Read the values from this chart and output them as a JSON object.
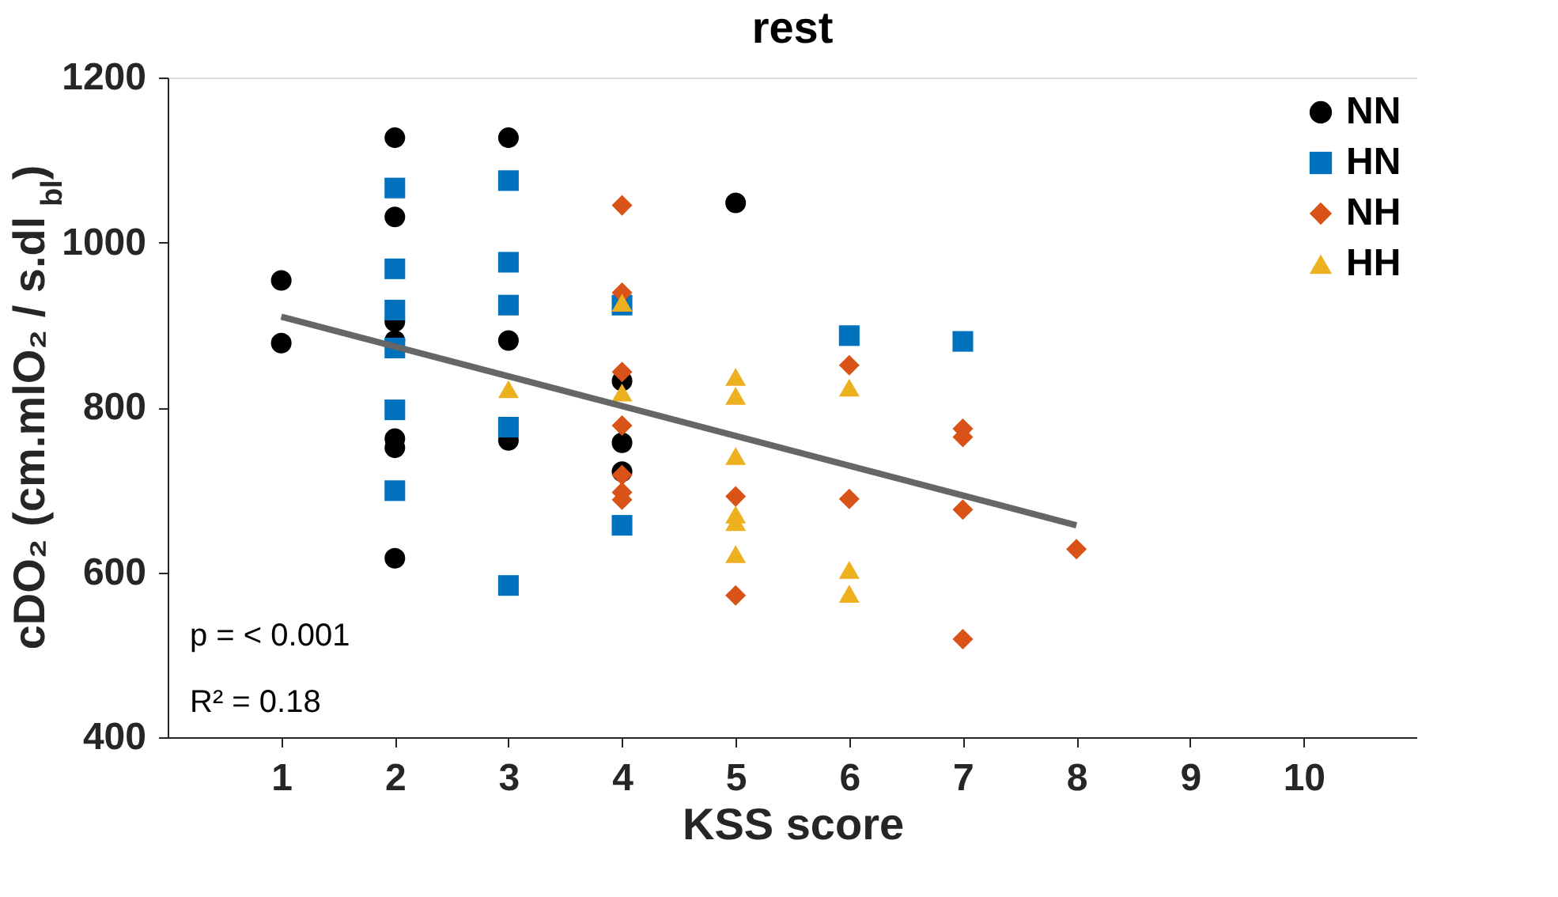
{
  "chart_data": {
    "type": "scatter",
    "title": "rest",
    "xlabel": "KSS score",
    "ylabel": "cDO₂ (cm.mlO₂ / s.dl$_{bl}$)",
    "xlim": [
      0,
      11
    ],
    "xticks": [
      1,
      2,
      3,
      4,
      5,
      6,
      7,
      8,
      9,
      10
    ],
    "ylim": [
      400,
      1200
    ],
    "yticks": [
      400,
      600,
      800,
      1000,
      1200
    ],
    "grid": false,
    "legend": "top right",
    "annotations": [
      "p = < 0.001",
      "R² = 0.18"
    ],
    "series": [
      {
        "name": "NN",
        "color": "#000000",
        "marker": "circle",
        "x": [
          1,
          1,
          2,
          2,
          2,
          2,
          2,
          2,
          2,
          3,
          3,
          3,
          4,
          4,
          4,
          5
        ],
        "values": [
          954,
          878,
          1127,
          1031,
          904,
          881,
          762,
          751,
          617,
          1127,
          881,
          760,
          832,
          757,
          722,
          1048
        ]
      },
      {
        "name": "HN",
        "color": "#0072bd",
        "marker": "square",
        "x": [
          2,
          2,
          2,
          2,
          2,
          2,
          3,
          3,
          3,
          3,
          3,
          4,
          4,
          6,
          7
        ],
        "values": [
          1066,
          968,
          918,
          872,
          797,
          699,
          1075,
          976,
          924,
          776,
          584,
          924,
          657,
          887,
          880
        ]
      },
      {
        "name": "NH",
        "color": "#d95319",
        "marker": "diamond",
        "x": [
          4,
          4,
          4,
          4,
          4,
          4,
          4,
          5,
          5,
          6,
          6,
          7,
          7,
          7,
          7,
          8
        ],
        "values": [
          1045,
          939,
          843,
          778,
          718,
          697,
          688,
          692,
          572,
          851,
          689,
          774,
          764,
          676,
          519,
          628
        ]
      },
      {
        "name": "HH",
        "color": "#edb120",
        "marker": "triangle",
        "x": [
          3,
          4,
          4,
          5,
          5,
          5,
          5,
          5,
          5,
          6,
          6,
          6
        ],
        "values": [
          822,
          927,
          818,
          837,
          814,
          741,
          670,
          661,
          622,
          824,
          603,
          574
        ]
      },
      {
        "type": "line",
        "color": "#666666",
        "line_style": "solid",
        "x": [
          1,
          8
        ],
        "values": [
          910,
          657
        ]
      }
    ]
  }
}
